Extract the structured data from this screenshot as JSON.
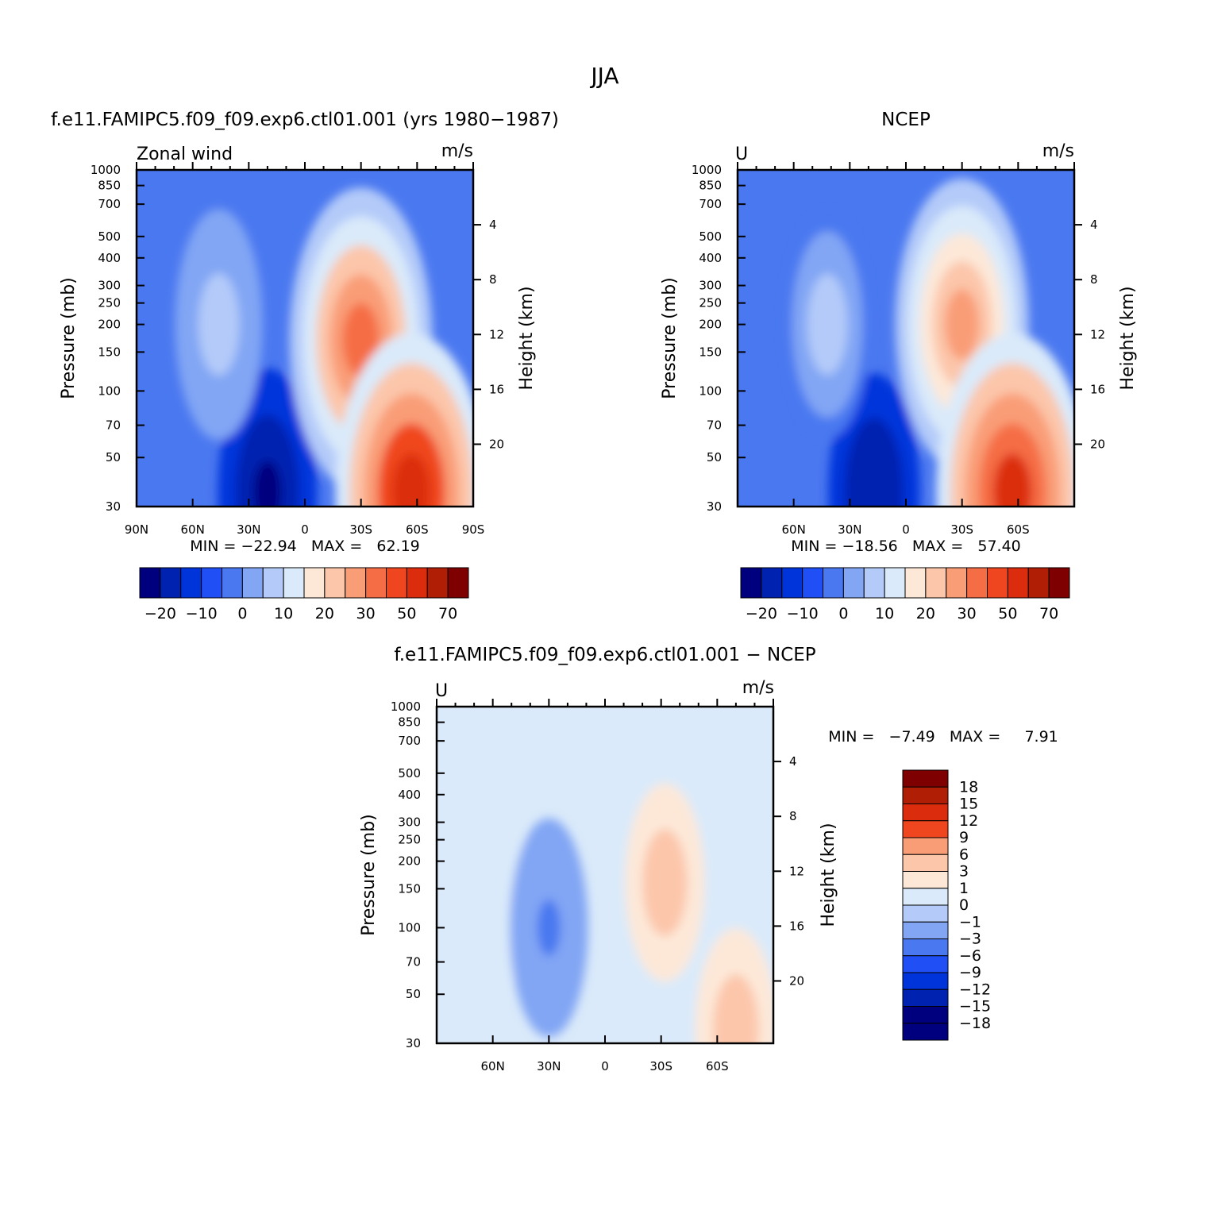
{
  "figure_title": "JJA",
  "panels": [
    {
      "subtitle": "f.e11.FAMIPC5.f09_f09.exp6.ctl01.001 (yrs 1980−1987)",
      "left_label": "Zonal wind",
      "units": "m/s",
      "ylabel": "Pressure (mb)",
      "ylabel_right": "Height (km)",
      "min_max": "MIN = −22.94   MAX =   62.19"
    },
    {
      "subtitle": "NCEP",
      "left_label": "U",
      "units": "m/s",
      "ylabel": "Pressure (mb)",
      "ylabel_right": "Height (km)",
      "min_max": "MIN = −18.56   MAX =   57.40"
    },
    {
      "subtitle": "f.e11.FAMIPC5.f09_f09.exp6.ctl01.001 − NCEP",
      "left_label": "U",
      "units": "m/s",
      "ylabel": "Pressure (mb)",
      "ylabel_right": "Height (km)",
      "min_max": "MIN =   −7.49   MAX =     7.91"
    }
  ],
  "chart_data": [
    {
      "type": "heatmap",
      "name": "model",
      "x_ticks": [
        "90N",
        "60N",
        "30N",
        "0",
        "30S",
        "60S",
        "90S"
      ],
      "y_ticks": [
        30,
        50,
        70,
        100,
        150,
        200,
        250,
        300,
        400,
        500,
        700,
        850,
        1000
      ],
      "y_scale": "log",
      "y_range": [
        1000,
        30
      ],
      "height_ticks": [
        4,
        8,
        12,
        16,
        20
      ],
      "min": -22.94,
      "max": 62.19,
      "features": [
        {
          "lat": 20,
          "p": 35,
          "value": -22
        },
        {
          "lat": 46,
          "p": 200,
          "value": 16
        },
        {
          "lat": -30,
          "p": 170,
          "value": 45
        },
        {
          "lat": -57,
          "p": 35,
          "value": 62
        }
      ]
    },
    {
      "type": "heatmap",
      "name": "NCEP",
      "x_ticks": [
        "60N",
        "30N",
        "0",
        "30S",
        "60S"
      ],
      "y_ticks": [
        30,
        50,
        70,
        100,
        150,
        200,
        250,
        300,
        400,
        500,
        700,
        850,
        1000
      ],
      "y_scale": "log",
      "y_range": [
        1000,
        30
      ],
      "height_ticks": [
        4,
        8,
        12,
        16,
        20
      ],
      "min": -18.56,
      "max": 57.4,
      "features": [
        {
          "lat": 17,
          "p": 35,
          "value": -18
        },
        {
          "lat": 42,
          "p": 200,
          "value": 15
        },
        {
          "lat": -30,
          "p": 200,
          "value": 40
        },
        {
          "lat": -57,
          "p": 35,
          "value": 57
        }
      ]
    },
    {
      "type": "heatmap",
      "name": "difference",
      "x_ticks": [
        "60N",
        "30N",
        "0",
        "30S",
        "60S"
      ],
      "y_ticks": [
        30,
        50,
        70,
        100,
        150,
        200,
        250,
        300,
        400,
        500,
        700,
        850,
        1000
      ],
      "y_scale": "log",
      "y_range": [
        1000,
        30
      ],
      "height_ticks": [
        4,
        8,
        12,
        16,
        20
      ],
      "min": -7.49,
      "max": 7.91,
      "features": [
        {
          "lat": 60,
          "p": 150,
          "value": 3
        },
        {
          "lat": 30,
          "p": 100,
          "value": -4
        },
        {
          "lat": -32,
          "p": 160,
          "value": 7.5
        },
        {
          "lat": -70,
          "p": 35,
          "value": 7.9
        }
      ]
    }
  ],
  "colorbars": [
    {
      "labels": [
        "−20",
        "−10",
        "0",
        "10",
        "20",
        "30",
        "50",
        "70"
      ],
      "colors": [
        "#00007f",
        "#0022b0",
        "#0034db",
        "#1f4ff5",
        "#4a78f0",
        "#82a6f4",
        "#b4cbf9",
        "#daeafa",
        "#fde8d8",
        "#fcc6aa",
        "#f99d77",
        "#f56d45",
        "#f0461f",
        "#db2d0e",
        "#b01e06",
        "#7f0000"
      ]
    },
    {
      "labels": [
        "−20",
        "−10",
        "0",
        "10",
        "20",
        "30",
        "50",
        "70"
      ],
      "colors": [
        "#00007f",
        "#0022b0",
        "#0034db",
        "#1f4ff5",
        "#4a78f0",
        "#82a6f4",
        "#b4cbf9",
        "#daeafa",
        "#fde8d8",
        "#fcc6aa",
        "#f99d77",
        "#f56d45",
        "#f0461f",
        "#db2d0e",
        "#b01e06",
        "#7f0000"
      ]
    },
    {
      "labels": [
        "18",
        "15",
        "12",
        "9",
        "6",
        "3",
        "1",
        "0",
        "−1",
        "−3",
        "−6",
        "−9",
        "−12",
        "−15",
        "−18"
      ],
      "colors": [
        "#7f0000",
        "#b01e06",
        "#db2d0e",
        "#f0461f",
        "#f99d77",
        "#fcc6aa",
        "#fde8d8",
        "#daeafa",
        "#b4cbf9",
        "#82a6f4",
        "#4a78f0",
        "#1f4ff5",
        "#0034db",
        "#0022b0",
        "#00007f",
        "#00007f"
      ]
    }
  ]
}
